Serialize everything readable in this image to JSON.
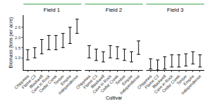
{
  "chart_data": {
    "type": "errorbar",
    "x_label": "Cultivar",
    "y_label": "Biomass (tons per acre)",
    "categories": [
      "Chippewa",
      "Flame C3",
      "Blackwell",
      "Cave in Rock",
      "Cedar Creek",
      "Timber",
      "Empire",
      "Independence"
    ],
    "ylim": [
      0.4,
      3.1
    ],
    "yticks": [
      {
        "value": 1,
        "label": "1.0"
      },
      {
        "value": 1.5,
        "label": "1.5"
      },
      {
        "value": 2,
        "label": "2.0"
      },
      {
        "value": 2.5,
        "label": "2.5"
      }
    ],
    "grid": false,
    "color": "#000000",
    "marker": "none",
    "panels": [
      {
        "title": "Field 1",
        "values": [
          1.15,
          1.25,
          1.55,
          1.75,
          1.75,
          1.85,
          2.1,
          2.55
        ],
        "error": [
          0.25,
          0.25,
          0.35,
          0.35,
          0.35,
          0.35,
          0.4,
          0.35
        ]
      },
      {
        "title": "Field 2",
        "values": [
          1.3,
          1.15,
          1.05,
          1.3,
          1.25,
          1.15,
          1.05,
          1.5
        ],
        "error": [
          0.3,
          0.28,
          0.25,
          0.3,
          0.3,
          0.28,
          0.25,
          0.33
        ]
      },
      {
        "title": "Field 3",
        "values": [
          0.7,
          0.65,
          0.75,
          0.85,
          0.85,
          0.9,
          1.0,
          0.85
        ],
        "error": [
          0.25,
          0.25,
          0.3,
          0.3,
          0.3,
          0.3,
          0.3,
          0.3
        ]
      }
    ]
  }
}
